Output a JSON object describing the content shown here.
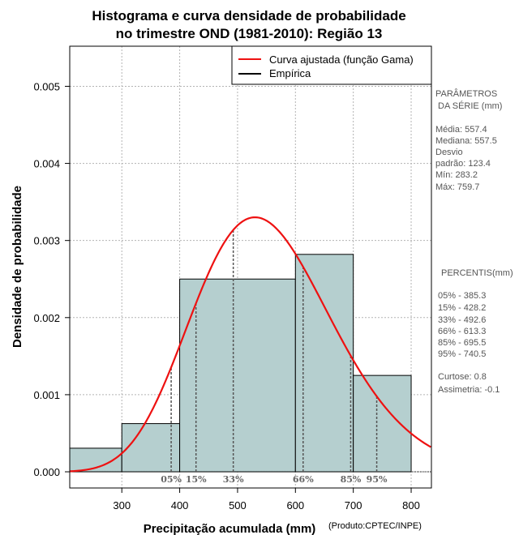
{
  "chart_data": {
    "type": "bar",
    "title_line1": "Histograma e curva densidade de probabilidade",
    "title_line2": "no trimestre OND (1981-2010): Região 13",
    "xlabel": "Precipitação acumulada (mm)",
    "ylabel": "Densidade de probabilidade",
    "credit": "(Produto:CPTEC/INPE)",
    "xlim": [
      210,
      835
    ],
    "ylim": [
      -0.00021,
      0.00552
    ],
    "x_ticks": [
      300,
      400,
      500,
      600,
      700,
      800
    ],
    "y_ticks": [
      0.0,
      0.001,
      0.002,
      0.003,
      0.004,
      0.005
    ],
    "y_tick_labels": [
      "0.000",
      "0.001",
      "0.002",
      "0.003",
      "0.004",
      "0.005"
    ],
    "grid": true,
    "bins": [
      {
        "from": 200,
        "to": 300,
        "density": 0.000306
      },
      {
        "from": 300,
        "to": 400,
        "density": 0.000625
      },
      {
        "from": 400,
        "to": 600,
        "density": 0.0025
      },
      {
        "from": 600,
        "to": 700,
        "density": 0.00282
      },
      {
        "from": 700,
        "to": 800,
        "density": 0.00125
      }
    ],
    "fitted_curve": {
      "distribution": "gamma",
      "mean": 557.4,
      "sd": 123.4
    },
    "percentile_marks": [
      {
        "label": "05%",
        "value": 385.3
      },
      {
        "label": "15%",
        "value": 428.2
      },
      {
        "label": "33%",
        "value": 492.6
      },
      {
        "label": "66%",
        "value": 613.3
      },
      {
        "label": "85%",
        "value": 695.5
      },
      {
        "label": "95%",
        "value": 740.5
      }
    ],
    "legend": {
      "position": "top-right",
      "entries": [
        {
          "label": "Curva ajustada (função Gama)",
          "color": "#ee1111"
        },
        {
          "label": "Empírica",
          "color": "#000000"
        }
      ]
    },
    "colors": {
      "bar_fill": "#b5cfcf",
      "curve": "#ee1111",
      "grid": "#b3b3b3"
    },
    "side_panel": {
      "params_header_1": "PARÂMETROS",
      "params_header_2": "DA SÉRIE (mm)",
      "media": "Média:  557.4",
      "mediana": "Mediana:  557.5",
      "desvio_1": "Desvio",
      "desvio_2": "padrão:  123.4",
      "min": "Mín:  283.2",
      "max": "Máx:  759.7",
      "percentis_header": "PERCENTIS(mm)",
      "percentis": [
        "05% -  385.3",
        "15% -  428.2",
        "33% -  492.6",
        "66% -  613.3",
        "85% -  695.5",
        "95% -  740.5"
      ],
      "curtose": "Curtose:  0.8",
      "assimetria": "Assimetria:  -0.1"
    }
  }
}
